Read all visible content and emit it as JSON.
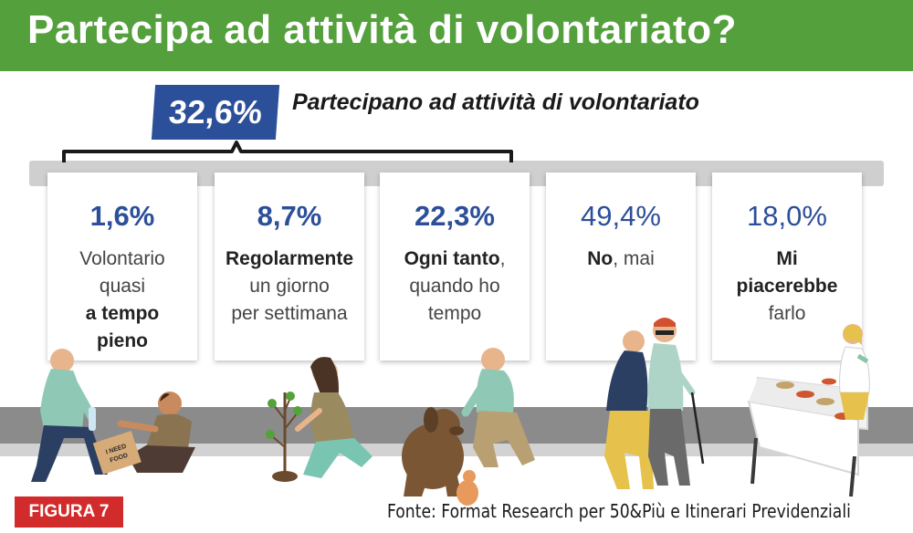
{
  "header": {
    "title": "Partecipa ad attività di volontariato?"
  },
  "summary": {
    "percent": "32,6%",
    "label": "Partecipano ad attività di volontariato"
  },
  "cards": [
    {
      "value": "1,6%",
      "lines": [
        "Volontario",
        "quasi"
      ],
      "bold_lines": [
        "a tempo",
        "pieno"
      ]
    },
    {
      "value": "8,7%",
      "bold": "Regolarmente",
      "rest_lines": [
        "un giorno",
        "per settimana"
      ]
    },
    {
      "value": "22,3%",
      "bold": "Ogni tanto",
      "suffix": ",",
      "rest_lines": [
        "quando ho",
        "tempo"
      ]
    },
    {
      "value": "49,4%",
      "bold": "No",
      "suffix": ", mai"
    },
    {
      "value": "18,0%",
      "bold_lines": [
        "Mi",
        "piacerebbe"
      ],
      "rest": "farlo"
    }
  ],
  "illustrations": {
    "sign_text": [
      "I NEED",
      "FOOD"
    ]
  },
  "footer": {
    "figure_label": "FIGURA 7",
    "source": "Fonte: Format Research per 50&Più e Itinerari Previdenziali"
  }
}
